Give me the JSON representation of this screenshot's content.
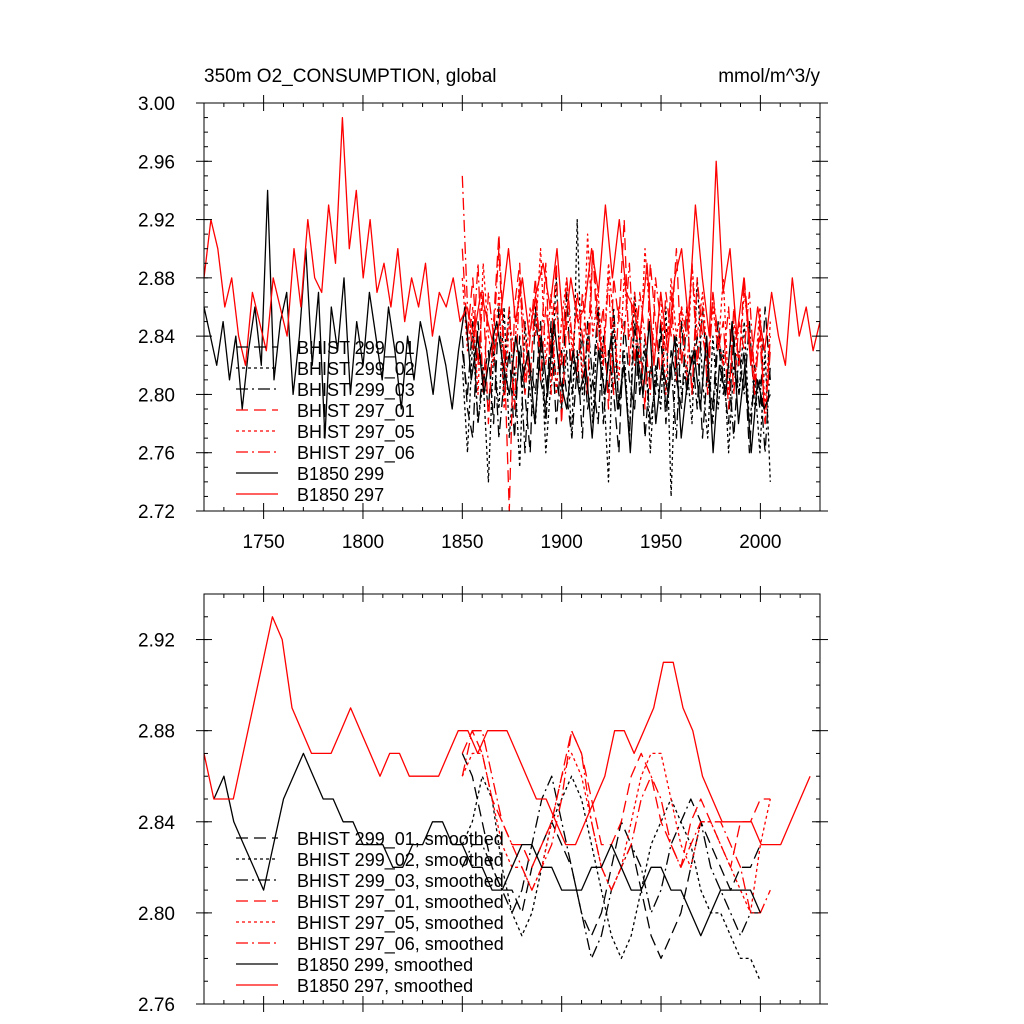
{
  "chart_data": [
    {
      "type": "line",
      "title": "350m O2_CONSUMPTION, global",
      "units": "mmol/m^3/y",
      "xlim": [
        1720,
        2030
      ],
      "ylim": [
        2.72,
        3.0
      ],
      "xticks": [
        1750,
        1800,
        1850,
        1900,
        1950,
        2000
      ],
      "xtick_labels": [
        "1750",
        "1800",
        "1850",
        "1900",
        "1950",
        "2000"
      ],
      "yticks": [
        2.72,
        2.76,
        2.8,
        2.84,
        2.88,
        2.92,
        2.96,
        3.0
      ],
      "ytick_labels": [
        "2.72",
        "2.76",
        "2.80",
        "2.84",
        "2.88",
        "2.92",
        "2.96",
        "3.00"
      ],
      "legend_position": "left",
      "series": [
        {
          "name": "BHIST 299_01",
          "color": "#000000",
          "dash": "dashed",
          "x_start": 1850,
          "x_end": 2005,
          "values": [
            2.84,
            2.79,
            2.77,
            2.85,
            2.81,
            2.83,
            2.78,
            2.86,
            2.8,
            2.83,
            2.77,
            2.84,
            2.8,
            2.76,
            2.86,
            2.81,
            2.79,
            2.85,
            2.78,
            2.83,
            2.8,
            2.77,
            2.82,
            2.84,
            2.79,
            2.81,
            2.86,
            2.78,
            2.83,
            2.8,
            2.76,
            2.85,
            2.81,
            2.79,
            2.84,
            2.77,
            2.82,
            2.8,
            2.85,
            2.78,
            2.83,
            2.81,
            2.79,
            2.86,
            2.8,
            2.84,
            2.77,
            2.82,
            2.79,
            2.85,
            2.81,
            2.78,
            2.84,
            2.8,
            2.83,
            2.76,
            2.82,
            2.79,
            2.86,
            2.81
          ]
        },
        {
          "name": "BHIST 299_02",
          "color": "#000000",
          "dash": "dotted",
          "x_start": 1850,
          "x_end": 2005,
          "values": [
            2.82,
            2.76,
            2.84,
            2.78,
            2.81,
            2.74,
            2.83,
            2.79,
            2.86,
            2.77,
            2.82,
            2.75,
            2.85,
            2.8,
            2.78,
            2.84,
            2.76,
            2.81,
            2.88,
            2.79,
            2.83,
            2.77,
            2.92,
            2.8,
            2.84,
            2.78,
            2.86,
            2.81,
            2.74,
            2.85,
            2.79,
            2.83,
            2.77,
            2.87,
            2.8,
            2.84,
            2.76,
            2.82,
            2.79,
            2.86,
            2.73,
            2.84,
            2.8,
            2.82,
            2.78,
            2.88,
            2.81,
            2.77,
            2.84,
            2.79,
            2.83,
            2.76,
            2.82,
            2.8,
            2.85,
            2.78,
            2.81,
            2.76,
            2.83,
            2.74
          ]
        },
        {
          "name": "BHIST 299_03",
          "color": "#000000",
          "dash": "dashdot",
          "x_start": 1850,
          "x_end": 2005,
          "values": [
            2.83,
            2.8,
            2.85,
            2.78,
            2.82,
            2.79,
            2.84,
            2.77,
            2.81,
            2.86,
            2.79,
            2.83,
            2.76,
            2.82,
            2.8,
            2.85,
            2.78,
            2.84,
            2.81,
            2.79,
            2.87,
            2.8,
            2.83,
            2.77,
            2.85,
            2.81,
            2.78,
            2.84,
            2.8,
            2.86,
            2.79,
            2.82,
            2.77,
            2.85,
            2.8,
            2.83,
            2.78,
            2.81,
            2.84,
            2.79,
            2.82,
            2.77,
            2.85,
            2.8,
            2.83,
            2.79,
            2.86,
            2.81,
            2.78,
            2.84,
            2.8,
            2.82,
            2.77,
            2.83,
            2.8,
            2.85,
            2.79,
            2.81,
            2.76,
            2.82
          ]
        },
        {
          "name": "BHIST 297_01",
          "color": "#ff0000",
          "dash": "dashed",
          "x_start": 1850,
          "x_end": 2005,
          "values": [
            2.9,
            2.84,
            2.88,
            2.82,
            2.87,
            2.78,
            2.85,
            2.91,
            2.83,
            2.72,
            2.86,
            2.89,
            2.8,
            2.84,
            2.88,
            2.81,
            2.86,
            2.83,
            2.89,
            2.78,
            2.85,
            2.82,
            2.87,
            2.84,
            2.8,
            2.9,
            2.83,
            2.86,
            2.79,
            2.88,
            2.85,
            2.92,
            2.82,
            2.87,
            2.84,
            2.79,
            2.89,
            2.85,
            2.81,
            2.87,
            2.84,
            2.9,
            2.82,
            2.86,
            2.8,
            2.88,
            2.84,
            2.82,
            2.87,
            2.83,
            2.85,
            2.79,
            2.86,
            2.82,
            2.88,
            2.84,
            2.8,
            2.85,
            2.78,
            2.84
          ]
        },
        {
          "name": "BHIST 297_05",
          "color": "#ff0000",
          "dash": "dotted",
          "x_start": 1850,
          "x_end": 2005,
          "values": [
            2.88,
            2.83,
            2.86,
            2.8,
            2.89,
            2.84,
            2.82,
            2.87,
            2.79,
            2.85,
            2.83,
            2.88,
            2.81,
            2.86,
            2.84,
            2.9,
            2.82,
            2.87,
            2.8,
            2.85,
            2.88,
            2.83,
            2.86,
            2.81,
            2.91,
            2.84,
            2.87,
            2.82,
            2.89,
            2.85,
            2.81,
            2.88,
            2.84,
            2.86,
            2.82,
            2.9,
            2.85,
            2.83,
            2.87,
            2.8,
            2.88,
            2.84,
            2.86,
            2.81,
            2.89,
            2.84,
            2.87,
            2.82,
            2.86,
            2.83,
            2.88,
            2.8,
            2.85,
            2.82,
            2.87,
            2.84,
            2.81,
            2.86,
            2.79,
            2.85
          ]
        },
        {
          "name": "BHIST 297_06",
          "color": "#ff0000",
          "dash": "dashdot",
          "x_start": 1850,
          "x_end": 2005,
          "values": [
            2.95,
            2.86,
            2.83,
            2.89,
            2.8,
            2.87,
            2.84,
            2.9,
            2.82,
            2.86,
            2.79,
            2.88,
            2.84,
            2.81,
            2.87,
            2.83,
            2.89,
            2.8,
            2.86,
            2.82,
            2.88,
            2.84,
            2.81,
            2.87,
            2.83,
            2.9,
            2.85,
            2.82,
            2.88,
            2.8,
            2.86,
            2.84,
            2.89,
            2.82,
            2.87,
            2.84,
            2.8,
            2.88,
            2.85,
            2.83,
            2.87,
            2.81,
            2.86,
            2.84,
            2.89,
            2.82,
            2.86,
            2.8,
            2.87,
            2.84,
            2.82,
            2.86,
            2.8,
            2.85,
            2.83,
            2.87,
            2.81,
            2.84,
            2.78,
            2.83
          ]
        },
        {
          "name": "B1850 299",
          "color": "#000000",
          "dash": "solid",
          "x_start": 1720,
          "x_end": 2005,
          "values": [
            2.86,
            2.84,
            2.82,
            2.85,
            2.81,
            2.84,
            2.79,
            2.83,
            2.86,
            2.82,
            2.94,
            2.81,
            2.85,
            2.87,
            2.8,
            2.84,
            2.9,
            2.82,
            2.87,
            2.77,
            2.86,
            2.83,
            2.88,
            2.8,
            2.85,
            2.82,
            2.87,
            2.84,
            2.81,
            2.86,
            2.83,
            2.79,
            2.84,
            2.81,
            2.85,
            2.83,
            2.8,
            2.84,
            2.82,
            2.79,
            2.83,
            2.86,
            2.81,
            2.84,
            2.8,
            2.83,
            2.85,
            2.82,
            2.8,
            2.84,
            2.81,
            2.83,
            2.78,
            2.84,
            2.8,
            2.85,
            2.81,
            2.79,
            2.83,
            2.8,
            2.82,
            2.77,
            2.83,
            2.8,
            2.84,
            2.79,
            2.82,
            2.76,
            2.83,
            2.8,
            2.85,
            2.78,
            2.82,
            2.8,
            2.84,
            2.77,
            2.81,
            2.83,
            2.79,
            2.84,
            2.76,
            2.82,
            2.8,
            2.85,
            2.78,
            2.82,
            2.76,
            2.81,
            2.79,
            2.8
          ]
        },
        {
          "name": "B1850 297",
          "color": "#ff0000",
          "dash": "solid",
          "x_start": 1720,
          "x_end": 2030,
          "values": [
            2.88,
            2.92,
            2.9,
            2.86,
            2.88,
            2.84,
            2.82,
            2.87,
            2.85,
            2.83,
            2.88,
            2.86,
            2.84,
            2.9,
            2.86,
            2.92,
            2.88,
            2.87,
            2.93,
            2.89,
            2.99,
            2.9,
            2.94,
            2.88,
            2.92,
            2.87,
            2.89,
            2.86,
            2.9,
            2.85,
            2.88,
            2.86,
            2.89,
            2.84,
            2.87,
            2.86,
            2.88,
            2.85,
            2.86,
            2.84,
            2.87,
            2.85,
            2.83,
            2.86,
            2.9,
            2.85,
            2.88,
            2.84,
            2.87,
            2.89,
            2.86,
            2.9,
            2.84,
            2.88,
            2.85,
            2.86,
            2.9,
            2.87,
            2.93,
            2.88,
            2.92,
            2.87,
            2.86,
            2.84,
            2.89,
            2.82,
            2.87,
            2.83,
            2.88,
            2.9,
            2.85,
            2.93,
            2.88,
            2.84,
            2.96,
            2.87,
            2.9,
            2.84,
            2.88,
            2.82,
            2.86,
            2.83,
            2.87,
            2.84,
            2.82,
            2.88,
            2.84,
            2.86,
            2.83,
            2.85
          ]
        }
      ]
    },
    {
      "type": "line",
      "title": "",
      "units": "",
      "xlim": [
        1720,
        2030
      ],
      "ylim": [
        2.76,
        2.94
      ],
      "xticks": [
        1750,
        1800,
        1850,
        1900,
        1950,
        2000
      ],
      "xtick_labels": [],
      "yticks": [
        2.76,
        2.8,
        2.84,
        2.88,
        2.92
      ],
      "ytick_labels": [
        "2.76",
        "2.80",
        "2.84",
        "2.88",
        "2.92"
      ],
      "legend_position": "left",
      "series": [
        {
          "name": "BHIST 299_01, smoothed",
          "color": "#000000",
          "dash": "dashed",
          "x_start": 1850,
          "x_end": 2000,
          "values": [
            2.87,
            2.86,
            2.84,
            2.82,
            2.81,
            2.81,
            2.8,
            2.82,
            2.83,
            2.84,
            2.83,
            2.82,
            2.8,
            2.79,
            2.8,
            2.82,
            2.84,
            2.83,
            2.81,
            2.79,
            2.78,
            2.79,
            2.8,
            2.82,
            2.84,
            2.83,
            2.82,
            2.81,
            2.82,
            2.82,
            2.83
          ]
        },
        {
          "name": "BHIST 299_02, smoothed",
          "color": "#000000",
          "dash": "dotted",
          "x_start": 1850,
          "x_end": 2000,
          "values": [
            2.83,
            2.84,
            2.86,
            2.85,
            2.82,
            2.8,
            2.79,
            2.8,
            2.82,
            2.84,
            2.85,
            2.86,
            2.85,
            2.83,
            2.81,
            2.79,
            2.78,
            2.79,
            2.81,
            2.83,
            2.84,
            2.85,
            2.84,
            2.83,
            2.81,
            2.8,
            2.8,
            2.79,
            2.78,
            2.78,
            2.77
          ]
        },
        {
          "name": "BHIST 299_03, smoothed",
          "color": "#000000",
          "dash": "dashdot",
          "x_start": 1850,
          "x_end": 2000,
          "values": [
            2.82,
            2.83,
            2.83,
            2.82,
            2.81,
            2.8,
            2.81,
            2.83,
            2.85,
            2.86,
            2.84,
            2.82,
            2.8,
            2.78,
            2.79,
            2.81,
            2.82,
            2.83,
            2.82,
            2.8,
            2.81,
            2.83,
            2.84,
            2.85,
            2.84,
            2.82,
            2.81,
            2.8,
            2.79,
            2.8,
            2.8
          ]
        },
        {
          "name": "BHIST 297_01, smoothed",
          "color": "#ff0000",
          "dash": "dashed",
          "x_start": 1850,
          "x_end": 2005,
          "values": [
            2.87,
            2.88,
            2.87,
            2.85,
            2.84,
            2.83,
            2.83,
            2.82,
            2.83,
            2.84,
            2.86,
            2.88,
            2.87,
            2.85,
            2.83,
            2.83,
            2.84,
            2.86,
            2.87,
            2.86,
            2.84,
            2.83,
            2.82,
            2.84,
            2.85,
            2.84,
            2.83,
            2.82,
            2.84,
            2.84,
            2.85,
            2.85
          ]
        },
        {
          "name": "BHIST 297_05, smoothed",
          "color": "#ff0000",
          "dash": "dotted",
          "x_start": 1850,
          "x_end": 2005,
          "values": [
            2.86,
            2.87,
            2.87,
            2.85,
            2.83,
            2.82,
            2.82,
            2.81,
            2.82,
            2.84,
            2.86,
            2.87,
            2.86,
            2.84,
            2.82,
            2.81,
            2.82,
            2.84,
            2.86,
            2.87,
            2.87,
            2.85,
            2.83,
            2.82,
            2.84,
            2.84,
            2.83,
            2.82,
            2.81,
            2.8,
            2.83,
            2.85
          ]
        },
        {
          "name": "BHIST 297_06, smoothed",
          "color": "#ff0000",
          "dash": "dashdot",
          "x_start": 1850,
          "x_end": 2005,
          "values": [
            2.86,
            2.88,
            2.88,
            2.86,
            2.84,
            2.83,
            2.82,
            2.81,
            2.82,
            2.83,
            2.85,
            2.88,
            2.87,
            2.84,
            2.82,
            2.81,
            2.82,
            2.83,
            2.85,
            2.86,
            2.85,
            2.83,
            2.82,
            2.83,
            2.84,
            2.84,
            2.84,
            2.83,
            2.82,
            2.8,
            2.8,
            2.81
          ]
        },
        {
          "name": "B1850 299, smoothed",
          "color": "#000000",
          "dash": "solid",
          "x_start": 1725,
          "x_end": 2000,
          "values": [
            2.85,
            2.86,
            2.84,
            2.83,
            2.82,
            2.81,
            2.83,
            2.85,
            2.86,
            2.87,
            2.86,
            2.85,
            2.85,
            2.84,
            2.84,
            2.83,
            2.83,
            2.83,
            2.82,
            2.82,
            2.83,
            2.83,
            2.84,
            2.84,
            2.83,
            2.83,
            2.82,
            2.82,
            2.81,
            2.81,
            2.82,
            2.83,
            2.83,
            2.82,
            2.82,
            2.81,
            2.81,
            2.81,
            2.82,
            2.82,
            2.83,
            2.82,
            2.81,
            2.81,
            2.82,
            2.82,
            2.81,
            2.81,
            2.8,
            2.79,
            2.8,
            2.81,
            2.81,
            2.81,
            2.81,
            2.8
          ]
        },
        {
          "name": "B1850 297, smoothed",
          "color": "#ff0000",
          "dash": "solid",
          "x_start": 1720,
          "x_end": 2025,
          "values": [
            2.87,
            2.85,
            2.85,
            2.85,
            2.87,
            2.89,
            2.91,
            2.93,
            2.92,
            2.89,
            2.88,
            2.87,
            2.87,
            2.87,
            2.88,
            2.89,
            2.88,
            2.87,
            2.86,
            2.87,
            2.87,
            2.86,
            2.86,
            2.86,
            2.86,
            2.87,
            2.88,
            2.88,
            2.87,
            2.88,
            2.88,
            2.88,
            2.87,
            2.86,
            2.85,
            2.85,
            2.84,
            2.83,
            2.83,
            2.84,
            2.85,
            2.86,
            2.88,
            2.88,
            2.87,
            2.88,
            2.89,
            2.91,
            2.91,
            2.89,
            2.88,
            2.86,
            2.85,
            2.84,
            2.84,
            2.84,
            2.84,
            2.83,
            2.83,
            2.83,
            2.84,
            2.85,
            2.86
          ]
        }
      ]
    }
  ]
}
